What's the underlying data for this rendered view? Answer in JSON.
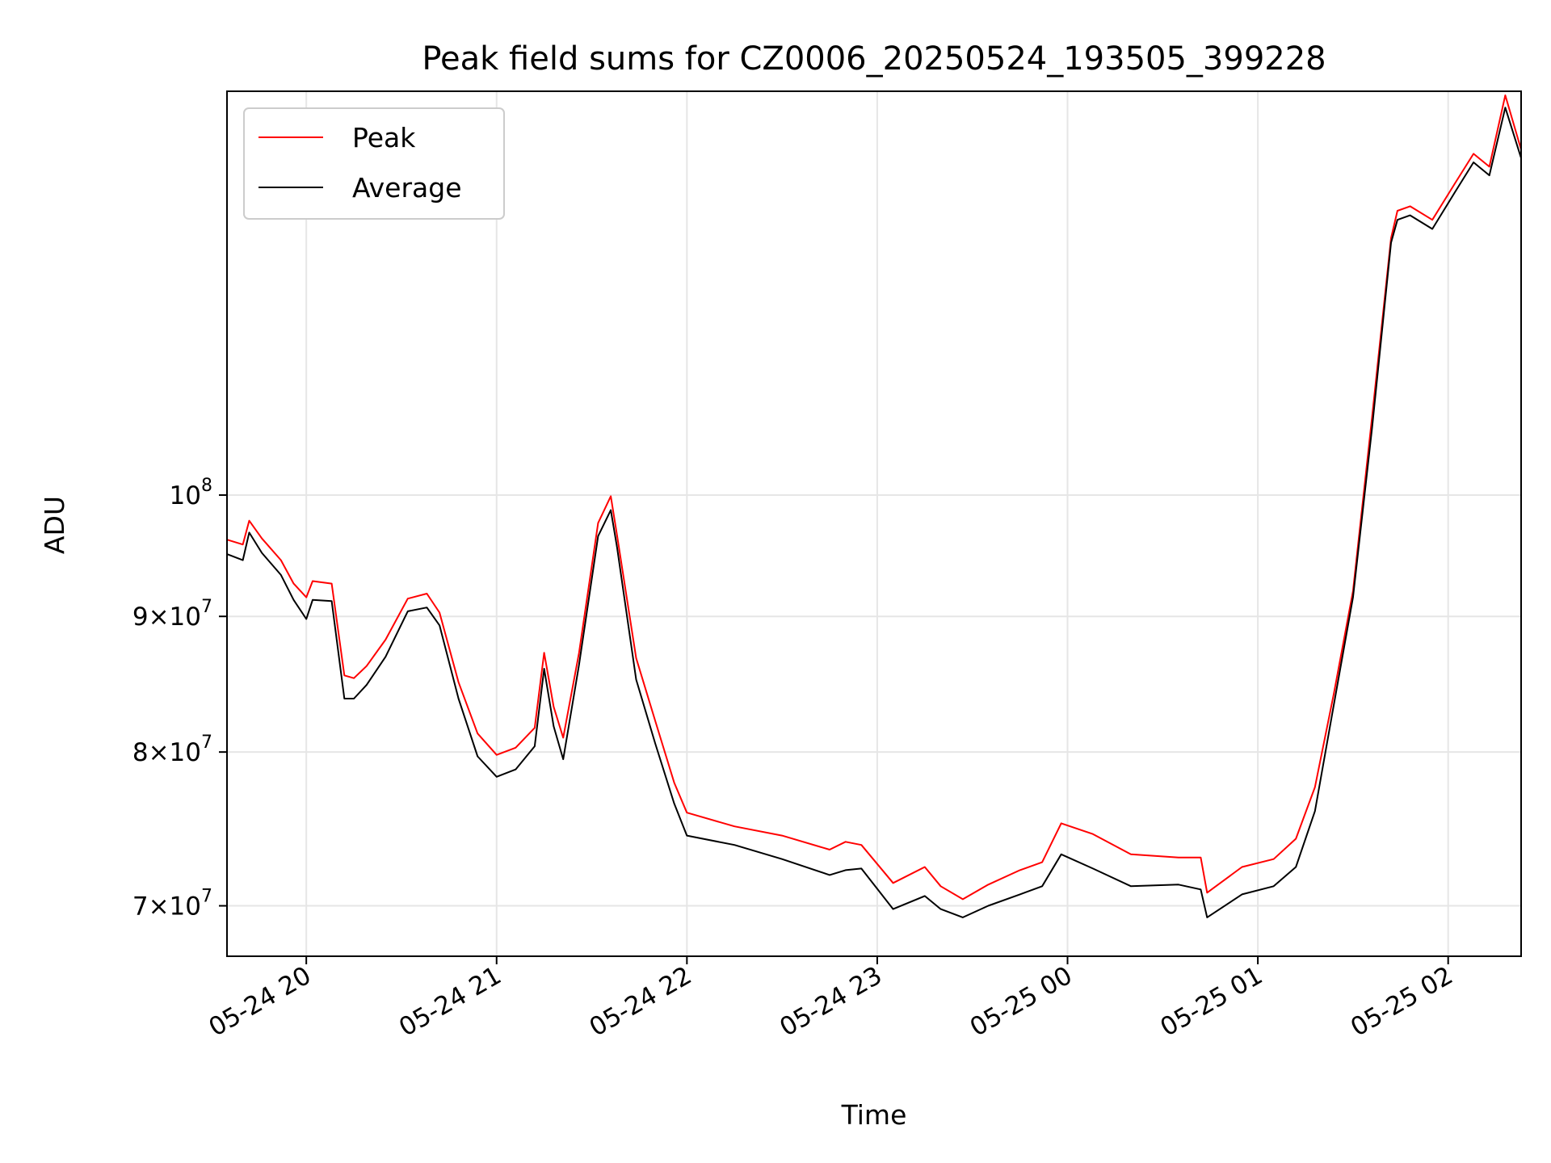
{
  "chart_data": {
    "type": "line",
    "title": "Peak field sums for CZ0006_20250524_193505_399228",
    "xlabel": "Time",
    "ylabel": "ADU",
    "yscale": "log",
    "xlim": [
      "2025-05-24 19:35",
      "2025-05-25 02:23"
    ],
    "ylim": [
      67000000,
      142000000
    ],
    "grid": true,
    "legend": {
      "loc": "upper-left",
      "entries": [
        "Peak",
        "Average"
      ]
    },
    "x_ticks": [
      {
        "value": "2025-05-24 20:00",
        "label": "05-24 20"
      },
      {
        "value": "2025-05-24 21:00",
        "label": "05-24 21"
      },
      {
        "value": "2025-05-24 22:00",
        "label": "05-24 22"
      },
      {
        "value": "2025-05-24 23:00",
        "label": "05-24 23"
      },
      {
        "value": "2025-05-25 00:00",
        "label": "05-25 00"
      },
      {
        "value": "2025-05-25 01:00",
        "label": "05-25 01"
      },
      {
        "value": "2025-05-25 02:00",
        "label": "05-25 02"
      }
    ],
    "y_ticks": [
      {
        "value": 70000000,
        "mantissa": "7",
        "exp": "7"
      },
      {
        "value": 80000000,
        "mantissa": "8",
        "exp": "7"
      },
      {
        "value": 90000000,
        "mantissa": "9",
        "exp": "7"
      },
      {
        "value": 100000000,
        "mantissa": "",
        "exp": "8"
      }
    ],
    "x": [
      "2025-05-24 19:35",
      "2025-05-24 19:40",
      "2025-05-24 19:42",
      "2025-05-24 19:46",
      "2025-05-24 19:52",
      "2025-05-24 19:56",
      "2025-05-24 20:00",
      "2025-05-24 20:02",
      "2025-05-24 20:08",
      "2025-05-24 20:12",
      "2025-05-24 20:15",
      "2025-05-24 20:19",
      "2025-05-24 20:25",
      "2025-05-24 20:32",
      "2025-05-24 20:38",
      "2025-05-24 20:42",
      "2025-05-24 20:48",
      "2025-05-24 20:54",
      "2025-05-24 21:00",
      "2025-05-24 21:06",
      "2025-05-24 21:12",
      "2025-05-24 21:15",
      "2025-05-24 21:18",
      "2025-05-24 21:21",
      "2025-05-24 21:26",
      "2025-05-24 21:32",
      "2025-05-24 21:36",
      "2025-05-24 21:38",
      "2025-05-24 21:44",
      "2025-05-24 21:50",
      "2025-05-24 21:56",
      "2025-05-24 22:00",
      "2025-05-24 22:15",
      "2025-05-24 22:30",
      "2025-05-24 22:45",
      "2025-05-24 22:50",
      "2025-05-24 22:55",
      "2025-05-24 23:05",
      "2025-05-24 23:15",
      "2025-05-24 23:20",
      "2025-05-24 23:27",
      "2025-05-24 23:35",
      "2025-05-24 23:45",
      "2025-05-24 23:52",
      "2025-05-24 23:58",
      "2025-05-25 00:08",
      "2025-05-25 00:20",
      "2025-05-25 00:35",
      "2025-05-25 00:42",
      "2025-05-25 00:44",
      "2025-05-25 00:55",
      "2025-05-25 01:05",
      "2025-05-25 01:12",
      "2025-05-25 01:18",
      "2025-05-25 01:24",
      "2025-05-25 01:30",
      "2025-05-25 01:36",
      "2025-05-25 01:42",
      "2025-05-25 01:44",
      "2025-05-25 01:48",
      "2025-05-25 01:55",
      "2025-05-25 02:02",
      "2025-05-25 02:08",
      "2025-05-25 02:13",
      "2025-05-25 02:18",
      "2025-05-25 02:23"
    ],
    "series": [
      {
        "name": "Peak",
        "color": "#ff0000",
        "values": [
          96200000,
          95800000,
          97800000,
          96300000,
          94500000,
          92600000,
          91500000,
          92800000,
          92600000,
          85500000,
          85300000,
          86200000,
          88200000,
          91400000,
          91800000,
          90300000,
          85000000,
          81300000,
          79800000,
          80300000,
          81700000,
          87200000,
          83200000,
          81000000,
          87200000,
          97600000,
          99900000,
          96500000,
          86800000,
          82200000,
          77900000,
          75900000,
          75000000,
          74400000,
          73500000,
          74000000,
          73800000,
          71400000,
          72400000,
          71200000,
          70400000,
          71300000,
          72200000,
          72700000,
          75200000,
          74500000,
          73200000,
          73000000,
          73000000,
          70800000,
          72400000,
          72900000,
          74200000,
          77600000,
          84200000,
          92000000,
          107000000,
          125000000,
          128000000,
          128500000,
          127000000,
          131000000,
          134500000,
          133000000,
          141500000,
          135000000
        ]
      },
      {
        "name": "Average",
        "color": "#000000",
        "values": [
          95000000,
          94500000,
          96800000,
          95100000,
          93300000,
          91300000,
          89800000,
          91300000,
          91200000,
          83800000,
          83800000,
          84800000,
          86900000,
          90400000,
          90700000,
          89300000,
          83800000,
          79700000,
          78300000,
          78800000,
          80400000,
          86000000,
          81800000,
          79500000,
          86300000,
          96500000,
          98700000,
          95500000,
          85200000,
          80600000,
          76500000,
          74400000,
          73800000,
          72900000,
          71900000,
          72200000,
          72300000,
          69800000,
          70600000,
          69800000,
          69300000,
          70000000,
          70700000,
          71200000,
          73200000,
          72300000,
          71200000,
          71300000,
          71000000,
          69300000,
          70700000,
          71200000,
          72400000,
          76000000,
          83400000,
          91500000,
          106000000,
          124500000,
          127000000,
          127500000,
          126000000,
          130000000,
          133500000,
          132000000,
          140000000,
          134000000
        ]
      }
    ]
  }
}
